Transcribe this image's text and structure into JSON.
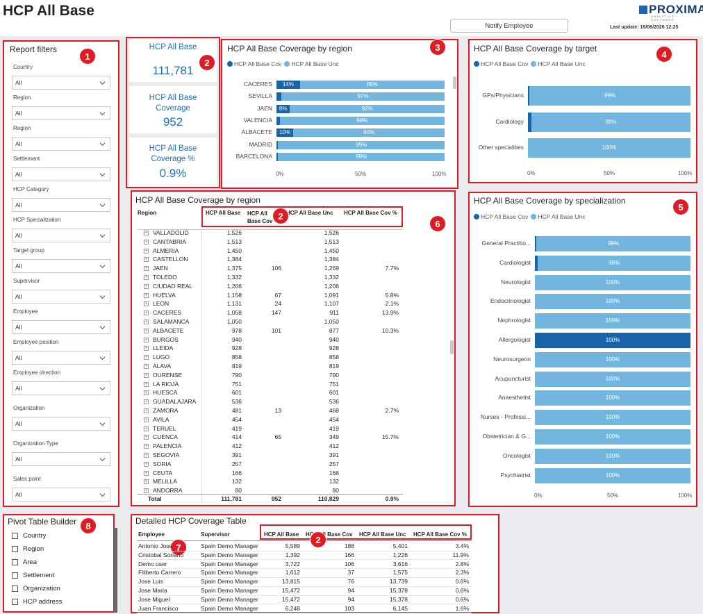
{
  "header": {
    "title": "HCP All Base",
    "logo_text": "PROXIMA",
    "logo_sub": "ANALYTICS · SOFTWARE",
    "notify_button": "Notify Employee",
    "last_update": "Last update: 16/06/2026 12:25"
  },
  "colors": {
    "coverage": "#1765a8",
    "uncovered": "#72b6e0",
    "highlight": "#e01b24"
  },
  "badges": [
    "1",
    "2",
    "3",
    "4",
    "5",
    "6",
    "7",
    "8"
  ],
  "filters": {
    "title": "Report filters",
    "items": [
      {
        "label": "Country",
        "value": "All"
      },
      {
        "label": "Region",
        "value": "All"
      },
      {
        "label": "Region",
        "value": "All"
      },
      {
        "label": "Settlement",
        "value": "All"
      },
      {
        "label": "HCP Category",
        "value": "All"
      },
      {
        "label": "HCP Specialization",
        "value": "All"
      },
      {
        "label": "Target group",
        "value": "All"
      },
      {
        "label": "Supervisor",
        "value": "All"
      },
      {
        "label": "Employee",
        "value": "All"
      },
      {
        "label": "Employee position",
        "value": "All"
      },
      {
        "label": "Employee direction",
        "value": "All"
      },
      {
        "label": "Organization",
        "value": "All"
      },
      {
        "label": "Organization Type",
        "value": "All"
      },
      {
        "label": "Sales point",
        "value": "All"
      }
    ]
  },
  "kpis": {
    "all_base_label": "HCP All Base",
    "all_base_value": "111,781",
    "coverage_label": "HCP All Base Coverage",
    "coverage_value": "952",
    "coverage_pct_label": "HCP All Base Coverage %",
    "coverage_pct_value": "0.9%"
  },
  "legend": {
    "cov": "HCP All Base Cov",
    "unc": "HCP All Base Unc"
  },
  "chart_data": [
    {
      "type": "bar",
      "orientation": "horizontal-stacked-100",
      "title": "HCP All Base Coverage by region",
      "categories": [
        "CACERES",
        "SEVILLA",
        "JAEN",
        "VALENCIA",
        "ALBACETE",
        "MADRID",
        "BARCELONA"
      ],
      "series": [
        {
          "name": "HCP All Base Cov",
          "values": [
            14,
            3,
            8,
            2,
            10,
            1,
            1
          ],
          "labels": [
            "14%",
            "",
            "8%",
            "",
            "10%",
            "",
            ""
          ]
        },
        {
          "name": "HCP All Base Unc",
          "values": [
            86,
            97,
            92,
            98,
            90,
            99,
            99
          ],
          "labels": [
            "86%",
            "97%",
            "92%",
            "98%",
            "90%",
            "99%",
            "99%"
          ]
        }
      ],
      "xticks": [
        "0%",
        "50%",
        "100%"
      ]
    },
    {
      "type": "bar",
      "orientation": "horizontal-stacked-100",
      "title": "HCP All Base Coverage by target",
      "categories": [
        "GPs/Physicians",
        "Cardiology",
        "Other specialities"
      ],
      "series": [
        {
          "name": "HCP All Base Cov",
          "values": [
            1,
            2,
            0
          ]
        },
        {
          "name": "HCP All Base Unc",
          "values": [
            99,
            98,
            100
          ],
          "labels": [
            "99%",
            "98%",
            "100%"
          ]
        }
      ],
      "xticks": [
        "0%",
        "50%",
        "100%"
      ]
    },
    {
      "type": "bar",
      "orientation": "horizontal-stacked-100",
      "title": "HCP All Base Coverage by specialization",
      "categories": [
        "General Practitio...",
        "Cardiologist",
        "Neurologist",
        "Endocrinologist",
        "Nephrologist",
        "Allergologist",
        "Neurosurgeon",
        "Acupuncturist",
        "Anaesthetist",
        "Nurses - Professi...",
        "Obstetrician & G...",
        "Oncologist",
        "Psychiatrist"
      ],
      "series": [
        {
          "name": "HCP All Base Cov",
          "values": [
            1,
            2,
            0,
            0,
            0,
            0,
            0,
            0,
            0,
            0,
            0,
            0,
            0
          ]
        },
        {
          "name": "HCP All Base Unc",
          "values": [
            99,
            98,
            100,
            100,
            100,
            100,
            100,
            100,
            100,
            100,
            100,
            100,
            100
          ],
          "labels": [
            "99%",
            "98%",
            "100%",
            "100%",
            "100%",
            "100%",
            "100%",
            "100%",
            "100%",
            "100%",
            "100%",
            "100%",
            "100%"
          ]
        }
      ],
      "highlighted": "Allergologist",
      "xticks": [
        "0%",
        "50%",
        "100%"
      ]
    }
  ],
  "region_matrix": {
    "title": "HCP All Base Coverage by region",
    "headers": {
      "region": "Region",
      "base": "HCP All Base",
      "cov": "HCP All Base Cov",
      "unc": "HCP All Base Unc",
      "pct": "HCP All Base Cov %"
    },
    "rows": [
      {
        "region": "VALLADOLID",
        "base": "1,526",
        "cov": "",
        "unc": "1,526",
        "pct": ""
      },
      {
        "region": "CANTABRIA",
        "base": "1,513",
        "cov": "",
        "unc": "1,513",
        "pct": ""
      },
      {
        "region": "ALMERIA",
        "base": "1,450",
        "cov": "",
        "unc": "1,450",
        "pct": ""
      },
      {
        "region": "CASTELLON",
        "base": "1,384",
        "cov": "",
        "unc": "1,384",
        "pct": ""
      },
      {
        "region": "JAEN",
        "base": "1,375",
        "cov": "106",
        "unc": "1,269",
        "pct": "7.7%"
      },
      {
        "region": "TOLEDO",
        "base": "1,332",
        "cov": "",
        "unc": "1,332",
        "pct": ""
      },
      {
        "region": "CIUDAD REAL",
        "base": "1,206",
        "cov": "",
        "unc": "1,206",
        "pct": ""
      },
      {
        "region": "HUELVA",
        "base": "1,158",
        "cov": "67",
        "unc": "1,091",
        "pct": "5.8%"
      },
      {
        "region": "LEON",
        "base": "1,131",
        "cov": "24",
        "unc": "1,107",
        "pct": "2.1%"
      },
      {
        "region": "CACERES",
        "base": "1,058",
        "cov": "147",
        "unc": "911",
        "pct": "13.9%"
      },
      {
        "region": "SALAMANCA",
        "base": "1,050",
        "cov": "",
        "unc": "1,050",
        "pct": ""
      },
      {
        "region": "ALBACETE",
        "base": "978",
        "cov": "101",
        "unc": "877",
        "pct": "10.3%"
      },
      {
        "region": "BURGOS",
        "base": "940",
        "cov": "",
        "unc": "940",
        "pct": ""
      },
      {
        "region": "LLEIDA",
        "base": "928",
        "cov": "",
        "unc": "928",
        "pct": ""
      },
      {
        "region": "LUGO",
        "base": "858",
        "cov": "",
        "unc": "858",
        "pct": ""
      },
      {
        "region": "ALAVA",
        "base": "819",
        "cov": "",
        "unc": "819",
        "pct": ""
      },
      {
        "region": "OURENSE",
        "base": "790",
        "cov": "",
        "unc": "790",
        "pct": ""
      },
      {
        "region": "LA RIOJA",
        "base": "751",
        "cov": "",
        "unc": "751",
        "pct": ""
      },
      {
        "region": "HUESCA",
        "base": "601",
        "cov": "",
        "unc": "601",
        "pct": ""
      },
      {
        "region": "GUADALAJARA",
        "base": "536",
        "cov": "",
        "unc": "536",
        "pct": ""
      },
      {
        "region": "ZAMORA",
        "base": "481",
        "cov": "13",
        "unc": "468",
        "pct": "2.7%"
      },
      {
        "region": "AVILA",
        "base": "454",
        "cov": "",
        "unc": "454",
        "pct": ""
      },
      {
        "region": "TERUEL",
        "base": "419",
        "cov": "",
        "unc": "419",
        "pct": ""
      },
      {
        "region": "CUENCA",
        "base": "414",
        "cov": "65",
        "unc": "349",
        "pct": "15.7%"
      },
      {
        "region": "PALENCIA",
        "base": "412",
        "cov": "",
        "unc": "412",
        "pct": ""
      },
      {
        "region": "SEGOVIA",
        "base": "391",
        "cov": "",
        "unc": "391",
        "pct": ""
      },
      {
        "region": "SORIA",
        "base": "257",
        "cov": "",
        "unc": "257",
        "pct": ""
      },
      {
        "region": "CEUTA",
        "base": "166",
        "cov": "",
        "unc": "166",
        "pct": ""
      },
      {
        "region": "MELILLA",
        "base": "132",
        "cov": "",
        "unc": "132",
        "pct": ""
      },
      {
        "region": "ANDORRA",
        "base": "80",
        "cov": "",
        "unc": "80",
        "pct": ""
      }
    ],
    "total": {
      "region": "Total",
      "base": "111,781",
      "cov": "952",
      "unc": "110,829",
      "pct": "0.9%"
    }
  },
  "detail_table": {
    "title": "Detailed HCP Coverage Table",
    "headers": {
      "employee": "Employee",
      "supervisor": "Supervisor",
      "base": "HCP All Base",
      "cov": "HCP All Base Cov",
      "unc": "HCP All Base Unc",
      "pct": "HCP All Base Cov %"
    },
    "rows": [
      {
        "employee": "Antonio Jose",
        "supervisor": "Spain Demo Manager",
        "base": "5,589",
        "cov": "188",
        "unc": "5,401",
        "pct": "3.4%"
      },
      {
        "employee": "Cristobal Soriano",
        "supervisor": "Spain Demo Manager",
        "base": "1,392",
        "cov": "166",
        "unc": "1,226",
        "pct": "11.9%"
      },
      {
        "employee": "Demo user",
        "supervisor": "Spain Demo Manager",
        "base": "3,722",
        "cov": "106",
        "unc": "3,616",
        "pct": "2.8%"
      },
      {
        "employee": "Filiberto Carrero",
        "supervisor": "Spain Demo Manager",
        "base": "1,612",
        "cov": "37",
        "unc": "1,575",
        "pct": "2.3%"
      },
      {
        "employee": "Jose Luis",
        "supervisor": "Spain Demo Manager",
        "base": "13,815",
        "cov": "76",
        "unc": "13,739",
        "pct": "0.6%"
      },
      {
        "employee": "Jose Maria",
        "supervisor": "Spain Demo Manager",
        "base": "15,472",
        "cov": "94",
        "unc": "15,378",
        "pct": "0.6%"
      },
      {
        "employee": "Jose Miguel",
        "supervisor": "Spain Demo Manager",
        "base": "15,472",
        "cov": "94",
        "unc": "15,378",
        "pct": "0.6%"
      },
      {
        "employee": "Juan Francisco",
        "supervisor": "Spain Demo Manager",
        "base": "6,248",
        "cov": "103",
        "unc": "6,145",
        "pct": "1.6%"
      }
    ]
  },
  "pivot": {
    "title": "Pivot Table Builder",
    "items": [
      "Country",
      "Region",
      "Area",
      "Settlement",
      "Organization",
      "HCP address"
    ]
  }
}
